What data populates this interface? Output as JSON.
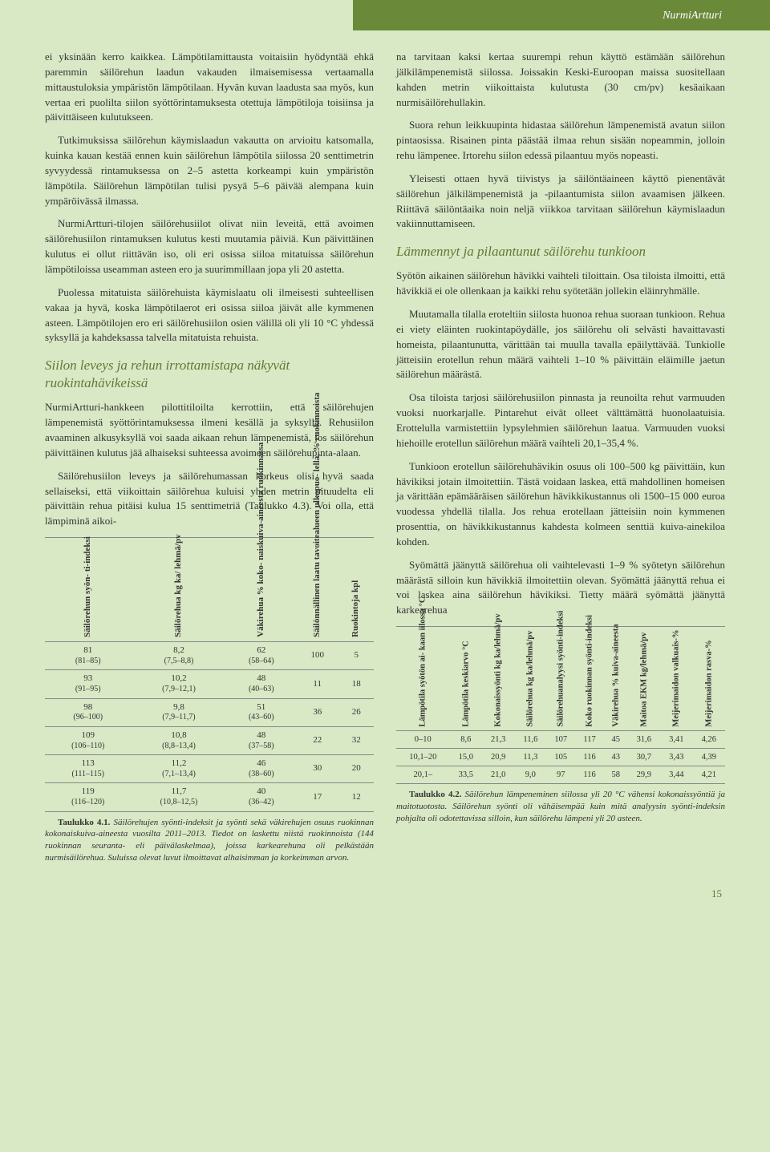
{
  "publication": "NurmiArtturi",
  "pageNumber": "15",
  "left": {
    "paras": [
      "ei yksinään kerro kaikkea. Lämpötilamittausta voitaisiin hyödyntää ehkä paremmin säilörehun laadun vakauden ilmaisemisessa vertaamalla mittaustuloksia ympäristön lämpötilaan. Hyvän kuvan laadusta saa myös, kun vertaa eri puolilta siilon syöttörintamuksesta otettuja lämpötiloja toisiinsa ja päivittäiseen kulutukseen.",
      "Tutkimuksissa säilörehun käymislaadun vakautta on arvioitu katsomalla, kuinka kauan kestää ennen kuin säilörehun lämpötila siilossa 20 senttimetrin syvyydessä rintamuksessa on 2–5 astetta korkeampi kuin ympäristön lämpötila. Säilörehun lämpötilan tulisi pysyä 5–6 päivää alempana kuin ympäröivässä ilmassa.",
      "NurmiArtturi-tilojen säilörehusiilot olivat niin leveitä, että avoimen säilörehusiilon rintamuksen kulutus kesti muutamia päiviä. Kun päivittäinen kulutus ei ollut riittävän iso, oli eri osissa siiloa mitatuissa säilörehun lämpötiloissa useamman asteen ero ja suurimmillaan jopa yli 20 astetta.",
      "Puolessa mitatuista säilörehuista käymislaatu oli ilmeisesti suhteellisen vakaa ja hyvä, koska lämpötilaerot eri osissa siiloa jäivät alle kymmenen asteen. Lämpötilojen ero eri säilörehusiilon osien välillä oli yli 10 °C yhdessä syksyllä ja kahdeksassa talvella mitatuista rehuista."
    ],
    "section1": "Siilon leveys ja rehun irrottamistapa näkyvät ruokintahävikeissä",
    "paras2": [
      "NurmiArtturi-hankkeen pilottitiloilta kerrottiin, että säilörehujen lämpenemistä syöttörintamuksessa ilmeni kesällä ja syksyllä. Rehusiilon avaaminen alkusyksyllä voi saada aikaan rehun lämpenemistä, jos säilörehun päivittäinen kulutus jää alhaiseksi suhteessa avoimeen säilörehupinta-alaan.",
      "Säilörehusiilon leveys ja säilörehumassan korkeus olisi hyvä saada sellaiseksi, että viikoittain säilörehua kuluisi yhden metrin pituudelta eli päivittäin rehua pitäisi kulua 15 senttimetriä (Taulukko 4.3). Voi olla, että lämpiminä aikoi-"
    ],
    "table1": {
      "headers": [
        "Säilörehun syön-\nti-indeksi",
        "Säilörehua kg ka/\nlehmä/pv",
        "Väkirehua % koko-\nnaiskuiva-aineesta\nruokinnassa",
        "Säilönnällinen laatu\ntavoitealueen ulkopuo-\nlella, % ruokinnoista",
        "Ruokintoja kpl"
      ],
      "rows": [
        [
          "81",
          "(81–85)",
          "8,2",
          "(7,5–8,8)",
          "62",
          "(58–64)",
          "100",
          "5"
        ],
        [
          "93",
          "(91–95)",
          "10,2",
          "(7,9–12,1)",
          "48",
          "(40–63)",
          "11",
          "18"
        ],
        [
          "98",
          "(96–100)",
          "9,8",
          "(7,9–11,7)",
          "51",
          "(43–60)",
          "36",
          "26"
        ],
        [
          "109",
          "(106–110)",
          "10,8",
          "(8,8–13,4)",
          "48",
          "(37–58)",
          "22",
          "32"
        ],
        [
          "113",
          "(111–115)",
          "11,2",
          "(7,1–13,4)",
          "46",
          "(38–60)",
          "30",
          "20"
        ],
        [
          "119",
          "(116–120)",
          "11,7",
          "(10,8–12,5)",
          "40",
          "(36–42)",
          "17",
          "12"
        ]
      ]
    },
    "caption1Label": "Taulukko 4.1.",
    "caption1": "Säilörehujen syönti-indeksit ja syönti sekä väkirehujen osuus ruokinnan kokonaiskuiva-aineesta vuosilta 2011–2013. Tiedot on laskettu niistä ruokinnoista (144 ruokinnan seuranta- eli päivälaskelmaa), joissa karkearehuna oli pelkästään nurmisäilörehua. Suluissa olevat luvut ilmoittavat alhaisimman ja korkeimman arvon."
  },
  "right": {
    "paras": [
      "na tarvitaan kaksi kertaa suurempi rehun käyttö estämään säilörehun jälkilämpenemistä siilossa. Joissakin Keski-Euroopan maissa suositellaan kahden metrin viikoittaista kulutusta (30 cm/pv) kesäaikaan nurmisäilörehullakin.",
      "Suora rehun leikkuupinta hidastaa säilörehun lämpenemistä avatun siilon pintaosissa. Risainen pinta päästää ilmaa rehun sisään nopeammin, jolloin rehu lämpenee. Irtorehu siilon edessä pilaantuu myös nopeasti.",
      "Yleisesti ottaen hyvä tiivistys ja säilöntäaineen käyttö pienentävät säilörehun jälkilämpenemistä ja -pilaantumista siilon avaamisen jälkeen. Riittävä säilöntäaika noin neljä viikkoa tarvitaan säilörehun käymislaadun vakiinnuttamiseen."
    ],
    "section2": "Lämmennyt ja pilaantunut säilörehu tunkioon",
    "paras2": [
      "Syötön aikainen säilörehun hävikki vaihteli tiloittain. Osa tiloista ilmoitti, että hävikkiä ei ole ollenkaan ja kaikki rehu syötetään jollekin eläinryhmälle.",
      "Muutamalla tilalla eroteltiin siilosta huonoa rehua suoraan tunkioon. Rehua ei viety eläinten ruokintapöydälle, jos säilörehu oli selvästi havaittavasti homeista, pilaantunutta, värittään tai muulla tavalla epäilyttävää. Tunkiolle jätteisiin erotellun rehun määrä vaihteli 1–10 % päivittäin eläimille jaetun säilörehun määrästä.",
      "Osa tiloista tarjosi säilörehusiilon pinnasta ja reunoilta rehut varmuuden vuoksi nuorkarjalle. Pintarehut eivät olleet välttämättä huonolaatuisia. Erottelulla varmistettiin lypsylehmien säilörehun laatua. Varmuuden vuoksi hiehoille erotellun säilörehun määrä vaihteli 20,1–35,4 %.",
      "Tunkioon erotellun säilörehuhävikin osuus oli 100–500 kg päivittäin, kun hävikiksi jotain ilmoitettiin. Tästä voidaan laskea, että mahdollinen homeisen ja värittään epämääräisen säilörehun hävikkikustannus oli 1500–15 000 euroa vuodessa yhdellä tilalla. Jos rehua erotellaan jätteisiin noin kymmenen prosenttia, on hävikkikustannus kahdesta kolmeen senttiä kuiva-ainekiloa kohden.",
      "Syömättä jäänyttä säilörehua oli vaihtelevasti 1–9 % syötetyn säilörehun määrästä silloin kun hävikkiä ilmoitettiin olevan. Syömättä jäänyttä rehua ei voi laskea aina säilörehun hävikiksi. Tietty määrä syömättä jäänyttä karkearehua"
    ],
    "table2": {
      "headers": [
        "Lämpötila syötön ai-\nkaan iilossa °C",
        "Lämpötila keskiarvo °C",
        "Kokonaissyönti kg ka/lehmä/pv",
        "Säilörehua kg ka/lehmä/pv",
        "Säilörehuanalyysi syönti-indeksi",
        "Koko ruokinnan syönti-indeksi",
        "Väkirehua % kuiva-aineesta",
        "Maitoa EKM kg/lehmä/pv",
        "Meijerimaidon valkuais-%",
        "Meijerimaidon rasva-%"
      ],
      "rows": [
        [
          "0–10",
          "8,6",
          "21,3",
          "11,6",
          "107",
          "117",
          "45",
          "31,6",
          "3,41",
          "4,26"
        ],
        [
          "10,1–20",
          "15,0",
          "20,9",
          "11,3",
          "105",
          "116",
          "43",
          "30,7",
          "3,43",
          "4,39"
        ],
        [
          "20,1–",
          "33,5",
          "21,0",
          "9,0",
          "97",
          "116",
          "58",
          "29,9",
          "3,44",
          "4,21"
        ]
      ]
    },
    "caption2Label": "Taulukko 4.2.",
    "caption2": "Säilörehun lämpeneminen siilossa yli 20 °C vähensi kokonaissyöntiä ja maitotuotosta. Säilörehun syönti oli vähäisempää kuin mitä analyysin syönti-indeksin pohjalta oli odotettavissa silloin, kun säilörehu lämpeni yli 20 asteen."
  }
}
